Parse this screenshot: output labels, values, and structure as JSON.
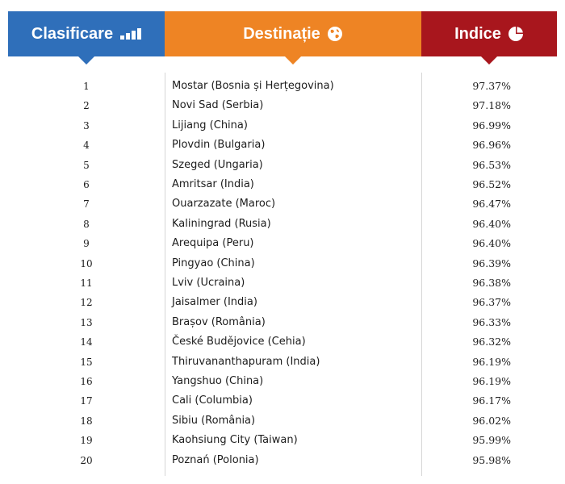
{
  "header": {
    "rank_label": "Clasificare",
    "destination_label": "Destinație",
    "index_label": "Indice",
    "colors": {
      "rank": "#2f6fba",
      "destination": "#ee8424",
      "index": "#a8161d"
    },
    "icons": {
      "rank": "bar-chart-icon",
      "destination": "globe-icon",
      "index": "pie-chart-icon"
    }
  },
  "chart_data": {
    "type": "table",
    "columns": [
      "Clasificare",
      "Destinație",
      "Indice"
    ],
    "rows": [
      {
        "rank": "1",
        "destination": "Mostar (Bosnia și Herțegovina)",
        "index": "97.37%"
      },
      {
        "rank": "2",
        "destination": "Novi Sad (Serbia)",
        "index": "97.18%"
      },
      {
        "rank": "3",
        "destination": "Lijiang (China)",
        "index": "96.99%"
      },
      {
        "rank": "4",
        "destination": "Plovdin (Bulgaria)",
        "index": "96.96%"
      },
      {
        "rank": "5",
        "destination": "Szeged (Ungaria)",
        "index": "96.53%"
      },
      {
        "rank": "6",
        "destination": "Amritsar (India)",
        "index": "96.52%"
      },
      {
        "rank": "7",
        "destination": "Ouarzazate (Maroc)",
        "index": "96.47%"
      },
      {
        "rank": "8",
        "destination": "Kaliningrad (Rusia)",
        "index": "96.40%"
      },
      {
        "rank": "9",
        "destination": "Arequipa (Peru)",
        "index": "96.40%"
      },
      {
        "rank": "10",
        "destination": "Pingyao (China)",
        "index": "96.39%"
      },
      {
        "rank": "11",
        "destination": "Lviv (Ucraina)",
        "index": "96.38%"
      },
      {
        "rank": "12",
        "destination": "Jaisalmer (India)",
        "index": "96.37%"
      },
      {
        "rank": "13",
        "destination": "Brașov (România)",
        "index": "96.33%"
      },
      {
        "rank": "14",
        "destination": "České Budějovice (Cehia)",
        "index": "96.32%"
      },
      {
        "rank": "15",
        "destination": "Thiruvananthapuram (India)",
        "index": "96.19%"
      },
      {
        "rank": "16",
        "destination": "Yangshuo (China)",
        "index": "96.19%"
      },
      {
        "rank": "17",
        "destination": "Cali (Columbia)",
        "index": "96.17%"
      },
      {
        "rank": "18",
        "destination": "Sibiu (România)",
        "index": "96.02%"
      },
      {
        "rank": "19",
        "destination": "Kaohsiung City (Taiwan)",
        "index": "95.99%"
      },
      {
        "rank": "20",
        "destination": "Poznań (Polonia)",
        "index": "95.98%"
      }
    ]
  }
}
